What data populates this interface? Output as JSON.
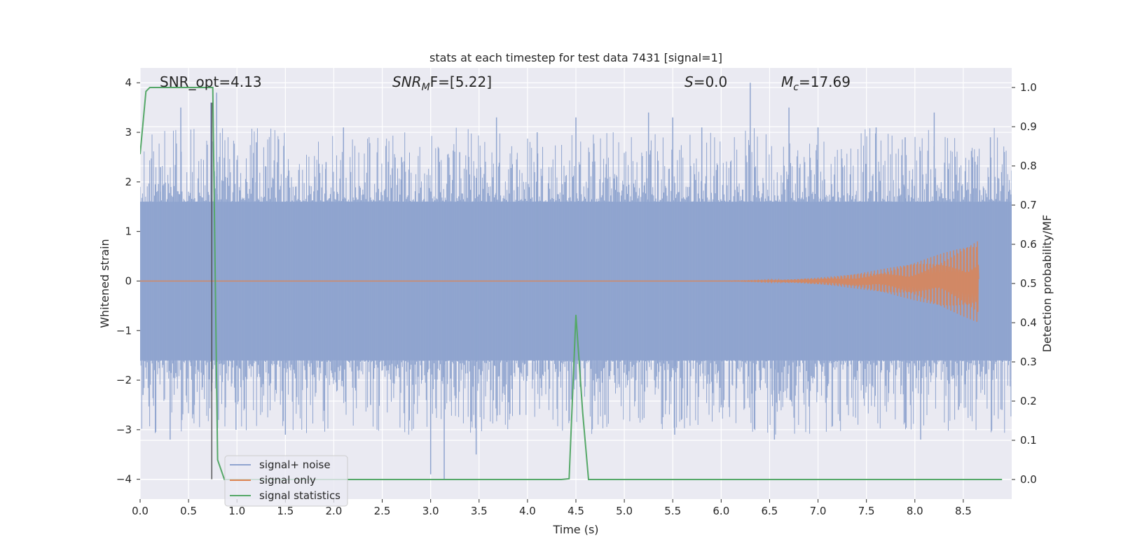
{
  "chart_data": {
    "type": "line",
    "title": "stats at each timestep for test data 7431 [signal=1]",
    "xlabel": "Time (s)",
    "ylabel": "Whitened strain",
    "y2label": "Detection probability/MF",
    "xlim": [
      0,
      9.0
    ],
    "ylim": [
      -4.4,
      4.3
    ],
    "y2lim": [
      -0.05,
      1.05
    ],
    "x_ticks": [
      0.0,
      0.5,
      1.0,
      1.5,
      2.0,
      2.5,
      3.0,
      3.5,
      4.0,
      4.5,
      5.0,
      5.5,
      6.0,
      6.5,
      7.0,
      7.5,
      8.0,
      8.5
    ],
    "x_tick_labels": [
      "0.0",
      "0.5",
      "1.0",
      "1.5",
      "2.0",
      "2.5",
      "3.0",
      "3.5",
      "4.0",
      "4.5",
      "5.0",
      "5.5",
      "6.0",
      "6.5",
      "7.0",
      "7.5",
      "8.0",
      "8.5"
    ],
    "y_ticks": [
      -4,
      -3,
      -2,
      -1,
      0,
      1,
      2,
      3,
      4
    ],
    "y_tick_labels": [
      "−4",
      "−3",
      "−2",
      "−1",
      "0",
      "1",
      "2",
      "3",
      "4"
    ],
    "y2_ticks": [
      0.0,
      0.1,
      0.2,
      0.3,
      0.4,
      0.5,
      0.6,
      0.7,
      0.8,
      0.9,
      1.0
    ],
    "y2_tick_labels": [
      "0.0",
      "0.1",
      "0.2",
      "0.3",
      "0.4",
      "0.5",
      "0.6",
      "0.7",
      "0.8",
      "0.9",
      "1.0"
    ],
    "grid": true,
    "legend_position": "lower-left",
    "annotations": {
      "snr_opt": "SNR_opt=4.13",
      "snr_mf_main": "SNR",
      "snr_mf_sub": "M",
      "snr_mf_rest": "F=[5.22]",
      "s_main": "S",
      "s_rest": "=0.0",
      "mc_main": "M",
      "mc_sub": "c",
      "mc_rest": "=17.69"
    },
    "series": [
      {
        "name": "signal+ noise",
        "color": "#8fa4cf",
        "axis": "left",
        "x_range": [
          0.0,
          9.0
        ],
        "envelope_abs": 1.6,
        "peaks": [
          {
            "x": 0.03,
            "y": -2.3
          },
          {
            "x": 0.21,
            "y": 2.3
          },
          {
            "x": 0.31,
            "y": -3.2
          },
          {
            "x": 0.42,
            "y": 3.5
          },
          {
            "x": 0.56,
            "y": -2.5
          },
          {
            "x": 0.73,
            "y": 3.6
          },
          {
            "x": 0.79,
            "y": 3.8
          },
          {
            "x": 0.99,
            "y": -3.0
          },
          {
            "x": 1.2,
            "y": 2.8
          },
          {
            "x": 1.5,
            "y": -3.1
          },
          {
            "x": 1.92,
            "y": 2.4
          },
          {
            "x": 2.1,
            "y": 3.1
          },
          {
            "x": 2.38,
            "y": -2.5
          },
          {
            "x": 2.7,
            "y": 2.5
          },
          {
            "x": 3.0,
            "y": -3.9
          },
          {
            "x": 3.14,
            "y": -4.0
          },
          {
            "x": 3.3,
            "y": 2.6
          },
          {
            "x": 3.47,
            "y": -3.5
          },
          {
            "x": 3.68,
            "y": 3.3
          },
          {
            "x": 3.92,
            "y": -2.7
          },
          {
            "x": 4.1,
            "y": 3.0
          },
          {
            "x": 4.5,
            "y": 3.3
          },
          {
            "x": 4.8,
            "y": -2.7
          },
          {
            "x": 5.25,
            "y": 3.4
          },
          {
            "x": 5.5,
            "y": 3.3
          },
          {
            "x": 5.52,
            "y": -3.1
          },
          {
            "x": 5.8,
            "y": 3.1
          },
          {
            "x": 6.0,
            "y": -2.5
          },
          {
            "x": 6.3,
            "y": 4.0
          },
          {
            "x": 6.55,
            "y": -3.2
          },
          {
            "x": 6.7,
            "y": 3.5
          },
          {
            "x": 7.0,
            "y": 3.1
          },
          {
            "x": 7.3,
            "y": -2.5
          },
          {
            "x": 7.6,
            "y": 3.1
          },
          {
            "x": 7.9,
            "y": 2.9
          },
          {
            "x": 8.06,
            "y": -3.2
          },
          {
            "x": 8.2,
            "y": 3.4
          },
          {
            "x": 8.45,
            "y": -2.6
          },
          {
            "x": 8.78,
            "y": 2.9
          },
          {
            "x": 8.9,
            "y": -2.6
          }
        ]
      },
      {
        "name": "signal only",
        "color": "#dd8452",
        "axis": "left",
        "x_range": [
          0.0,
          8.66
        ],
        "chirp_start_x": 5.6,
        "chirp_peak_x": 8.66,
        "chirp_peak_amp": 0.85
      },
      {
        "name": "signal statistics",
        "color": "#55a868",
        "axis": "right",
        "x": [
          0.0,
          0.06,
          0.1,
          0.2,
          0.4,
          0.6,
          0.7,
          0.75,
          0.8,
          0.87,
          1.0,
          1.5,
          2.0,
          3.0,
          4.0,
          4.35,
          4.43,
          4.5,
          4.57,
          4.63,
          4.7,
          5.0,
          6.0,
          7.0,
          8.0,
          8.9
        ],
        "y": [
          0.83,
          0.99,
          1.0,
          1.0,
          1.0,
          1.0,
          1.0,
          1.0,
          0.05,
          0.0,
          0.0,
          0.0,
          0.0,
          0.0,
          0.0,
          0.0,
          0.002,
          0.42,
          0.17,
          0.0,
          0.0,
          0.0,
          0.0,
          0.0,
          0.0,
          0.0
        ]
      }
    ],
    "vertical_marker_x": 0.74
  }
}
